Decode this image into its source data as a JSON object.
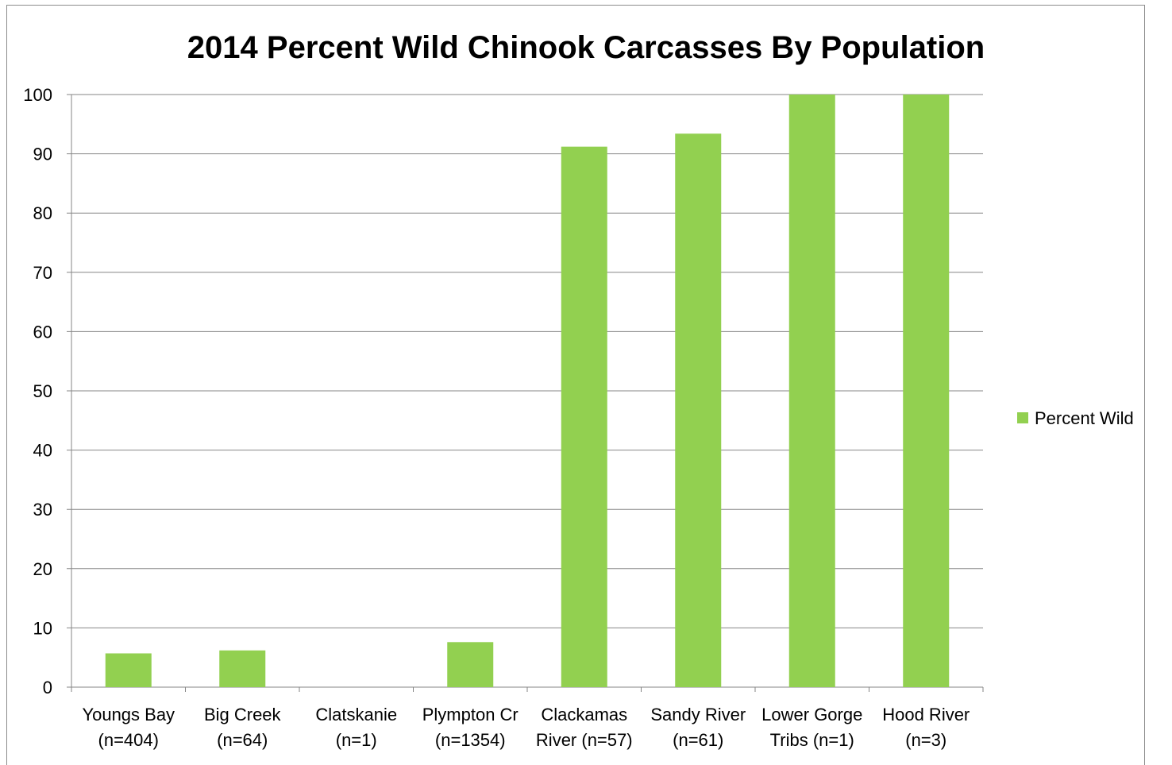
{
  "chart_data": {
    "type": "bar",
    "title": "2014 Percent Wild Chinook Carcasses By Population",
    "categories": [
      [
        "Youngs Bay",
        "(n=404)"
      ],
      [
        "Big Creek",
        "(n=64)"
      ],
      [
        "Clatskanie",
        "(n=1)"
      ],
      [
        "Plympton Cr",
        "(n=1354)"
      ],
      [
        "Clackamas",
        "River (n=57)"
      ],
      [
        "Sandy River",
        "(n=61)"
      ],
      [
        "Lower Gorge",
        "Tribs (n=1)"
      ],
      [
        "Hood River",
        "(n=3)"
      ]
    ],
    "series": [
      {
        "name": "Percent Wild",
        "color": "#92d050",
        "values": [
          5.7,
          6.2,
          0,
          7.6,
          91.2,
          93.4,
          100,
          100
        ]
      }
    ],
    "xlabel": "",
    "ylabel": "",
    "ylim": [
      0,
      100
    ],
    "yticks": [
      0,
      10,
      20,
      30,
      40,
      50,
      60,
      70,
      80,
      90,
      100
    ],
    "grid": true,
    "legend_position": "right"
  }
}
